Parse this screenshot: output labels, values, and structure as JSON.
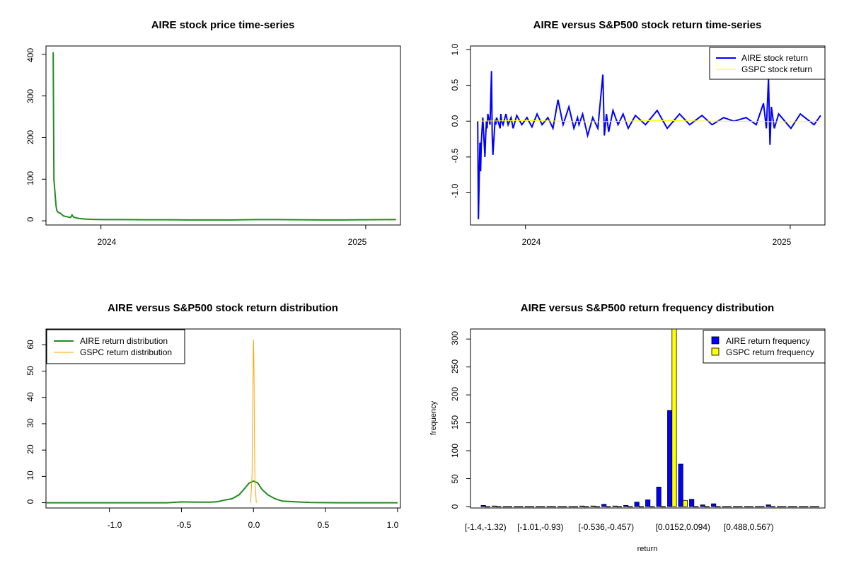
{
  "colors": {
    "price": "#228B22",
    "aire_return": "#0000FF",
    "gspc_return": "#FFFF00",
    "aire_density": "#228B22",
    "gspc_density": "#FFA500",
    "aire_hist": "#0000FF",
    "gspc_hist": "#FFFF00"
  },
  "chart_data": [
    {
      "type": "line",
      "title": "AIRE stock price time-series",
      "xlabel": "",
      "ylabel": "",
      "x_ticks": [
        "2024",
        "2025"
      ],
      "y_ticks": [
        "0",
        "100",
        "200",
        "300",
        "400"
      ],
      "xlim": [
        "2023-10-17",
        "2025-02-18"
      ],
      "ylim": [
        -10,
        420
      ],
      "series": [
        {
          "x": [
            "2023-10-27",
            "2023-10-28",
            "2023-10-30",
            "2023-10-31",
            "2023-11-01",
            "2023-11-02",
            "2023-11-03",
            "2023-11-06",
            "2023-11-08",
            "2023-11-10",
            "2023-11-14",
            "2023-11-17",
            "2023-11-20",
            "2023-11-22",
            "2023-11-24",
            "2023-11-28",
            "2023-12-01",
            "2023-12-06",
            "2023-12-12",
            "2023-12-20",
            "2024-01-05",
            "2024-02-01",
            "2024-03-01",
            "2024-04-01",
            "2024-05-01",
            "2024-06-01",
            "2024-07-01",
            "2024-08-01",
            "2024-09-01",
            "2024-10-01",
            "2024-11-01",
            "2024-12-01",
            "2025-01-01",
            "2025-02-01",
            "2025-02-12"
          ],
          "values": [
            405,
            100,
            55,
            35,
            25,
            22,
            20,
            18,
            15,
            12,
            10,
            9,
            8,
            14,
            9,
            7,
            6,
            5,
            4,
            3.5,
            3,
            3,
            2.5,
            2.5,
            2,
            2,
            2,
            3,
            3,
            2.5,
            2,
            2,
            2.5,
            3,
            3
          ]
        }
      ]
    },
    {
      "type": "line",
      "title": "AIRE versus S&P500 stock return time-series",
      "xlabel": "",
      "ylabel": "",
      "x_ticks": [
        "2024",
        "2025"
      ],
      "y_ticks": [
        "-1.0",
        "-0.5",
        "0.0",
        "0.5",
        "1.0"
      ],
      "xlim": [
        "2023-10-17",
        "2025-02-18"
      ],
      "ylim": [
        -1.45,
        1.05
      ],
      "legend_position": "top-right",
      "series": [
        {
          "name": "AIRE stock return",
          "x": [
            "2023-10-27",
            "2023-10-28",
            "2023-10-30",
            "2023-10-31",
            "2023-11-01",
            "2023-11-02",
            "2023-11-03",
            "2023-11-06",
            "2023-11-07",
            "2023-11-08",
            "2023-11-09",
            "2023-11-10",
            "2023-11-13",
            "2023-11-14",
            "2023-11-15",
            "2023-11-16",
            "2023-11-17",
            "2023-11-20",
            "2023-11-21",
            "2023-11-22",
            "2023-11-24",
            "2023-11-27",
            "2023-11-28",
            "2023-11-29",
            "2023-12-01",
            "2023-12-05",
            "2023-12-08",
            "2023-12-12",
            "2023-12-15",
            "2023-12-20",
            "2023-12-27",
            "2024-01-03",
            "2024-01-10",
            "2024-01-17",
            "2024-01-24",
            "2024-02-01",
            "2024-02-08",
            "2024-02-15",
            "2024-02-22",
            "2024-03-01",
            "2024-03-08",
            "2024-03-13",
            "2024-03-15",
            "2024-03-20",
            "2024-03-27",
            "2024-04-03",
            "2024-04-10",
            "2024-04-17",
            "2024-04-19",
            "2024-04-22",
            "2024-04-25",
            "2024-05-01",
            "2024-05-08",
            "2024-05-15",
            "2024-05-22",
            "2024-06-01",
            "2024-06-15",
            "2024-07-01",
            "2024-07-15",
            "2024-08-01",
            "2024-08-15",
            "2024-09-01",
            "2024-09-15",
            "2024-10-01",
            "2024-10-15",
            "2024-11-01",
            "2024-11-15",
            "2024-11-25",
            "2024-11-29",
            "2024-12-02",
            "2024-12-04",
            "2024-12-06",
            "2024-12-10",
            "2024-12-16",
            "2025-01-02",
            "2025-01-15",
            "2025-02-03",
            "2025-02-12"
          ],
          "values": [
            0.0,
            -1.37,
            -0.3,
            -0.7,
            -0.3,
            -0.1,
            0.05,
            -0.5,
            -0.2,
            0.0,
            -0.1,
            0.1,
            -0.05,
            0.3,
            0.7,
            -0.2,
            -0.47,
            0.02,
            -0.05,
            0.05,
            0.0,
            -0.1,
            0.1,
            0.0,
            -0.05,
            0.1,
            -0.05,
            0.05,
            -0.1,
            0.08,
            -0.05,
            0.05,
            -0.08,
            0.1,
            -0.05,
            0.05,
            -0.1,
            0.3,
            -0.05,
            0.2,
            -0.1,
            0.05,
            -0.05,
            0.1,
            -0.2,
            0.05,
            -0.1,
            0.65,
            -0.2,
            0.1,
            -0.15,
            0.15,
            -0.05,
            0.1,
            -0.1,
            0.08,
            -0.05,
            0.15,
            -0.1,
            0.1,
            -0.05,
            0.08,
            -0.05,
            0.05,
            0.0,
            0.05,
            -0.05,
            0.25,
            -0.1,
            0.6,
            -0.33,
            0.2,
            -0.1,
            0.1,
            -0.1,
            0.1,
            -0.05,
            0.08
          ]
        },
        {
          "name": "GSPC stock return",
          "x": [
            "2023-10-27",
            "2024-01-01",
            "2024-04-01",
            "2024-07-01",
            "2024-10-01",
            "2025-01-01",
            "2025-02-12"
          ],
          "values": [
            0.0,
            0.01,
            -0.01,
            0.01,
            0.0,
            -0.01,
            0.0
          ]
        }
      ]
    },
    {
      "type": "line",
      "title": "AIRE versus S&P500 stock return distribution",
      "xlabel": "",
      "ylabel": "",
      "x_ticks": [
        "-1.0",
        "-0.5",
        "0.0",
        "0.5",
        "1.0"
      ],
      "y_ticks": [
        "0",
        "10",
        "20",
        "30",
        "40",
        "50",
        "60"
      ],
      "xlim": [
        -1.44,
        1.02
      ],
      "ylim": [
        -2,
        66
      ],
      "legend_position": "top-left",
      "series": [
        {
          "name": "AIRE return distribution",
          "x": [
            -1.44,
            -0.6,
            -0.5,
            -0.4,
            -0.3,
            -0.25,
            -0.2,
            -0.15,
            -0.1,
            -0.06,
            -0.03,
            0.0,
            0.03,
            0.06,
            0.1,
            0.15,
            0.2,
            0.3,
            0.4,
            0.6,
            1.0
          ],
          "values": [
            0.0,
            0.0,
            0.3,
            0.2,
            0.2,
            0.4,
            1.0,
            1.5,
            3.0,
            5.5,
            7.5,
            8.2,
            7.5,
            5.0,
            3.0,
            1.5,
            0.6,
            0.3,
            0.1,
            0.0,
            0.0
          ]
        },
        {
          "name": "GSPC return distribution",
          "x": [
            -0.02,
            -0.01,
            -0.005,
            0.0,
            0.003,
            0.006,
            0.01,
            0.02
          ],
          "values": [
            0.0,
            10.0,
            40.0,
            62.0,
            54.0,
            30.0,
            8.0,
            0.0
          ]
        }
      ]
    },
    {
      "type": "bar",
      "title": "AIRE versus S&P500 return frequency distribution",
      "xlabel": "return",
      "ylabel": "frequency",
      "y_ticks": [
        "0",
        "50",
        "100",
        "150",
        "200",
        "250",
        "300"
      ],
      "ylim": [
        0,
        318
      ],
      "legend_position": "top-right",
      "x_tick_labels": [
        "[-1.4,-1.32)",
        "[-1.01,-0.93)",
        "[-0.536,-0.457)",
        "[0.0152,0.094)",
        "[0.488,0.567)"
      ],
      "x_tick_bins": [
        0,
        5,
        11,
        18,
        24
      ],
      "bin_count": 31,
      "series": [
        {
          "name": "AIRE return frequency",
          "values": [
            2,
            1,
            0,
            0,
            0,
            0,
            0,
            0,
            0,
            1,
            1,
            4,
            1,
            2,
            8,
            12,
            35,
            172,
            76,
            13,
            3,
            5,
            0,
            0,
            0,
            0,
            3,
            0,
            0,
            0,
            0
          ]
        },
        {
          "name": "GSPC return frequency",
          "values": [
            0,
            0,
            0,
            0,
            0,
            0,
            0,
            0,
            0,
            0,
            0,
            0,
            0,
            0,
            0,
            0,
            0,
            318,
            11,
            0,
            0,
            0,
            0,
            0,
            0,
            0,
            0,
            0,
            0,
            0,
            0
          ]
        }
      ]
    }
  ]
}
